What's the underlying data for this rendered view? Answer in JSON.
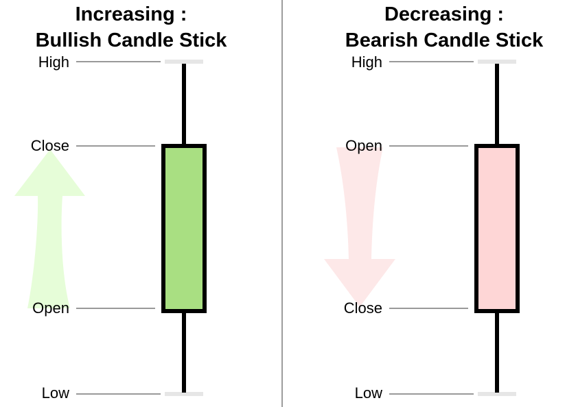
{
  "panels": [
    {
      "title_line1": "Increasing :",
      "title_line2": "Bullish Candle Stick",
      "labels": {
        "high": "High",
        "top": "Close",
        "bottom": "Open",
        "low": "Low"
      },
      "body_color": "#a9df82",
      "arrow_color": "#e6fdd8",
      "arrow_direction": "up"
    },
    {
      "title_line1": "Decreasing :",
      "title_line2": "Bearish Candle Stick",
      "labels": {
        "high": "High",
        "top": "Open",
        "bottom": "Close",
        "low": "Low"
      },
      "body_color": "#fed6d6",
      "arrow_color": "#fde8e8",
      "arrow_direction": "down"
    }
  ],
  "colors": {
    "wick": "#000000",
    "guide_line": "#999999",
    "cap": "#e6e6e6",
    "divider": "#666666"
  }
}
